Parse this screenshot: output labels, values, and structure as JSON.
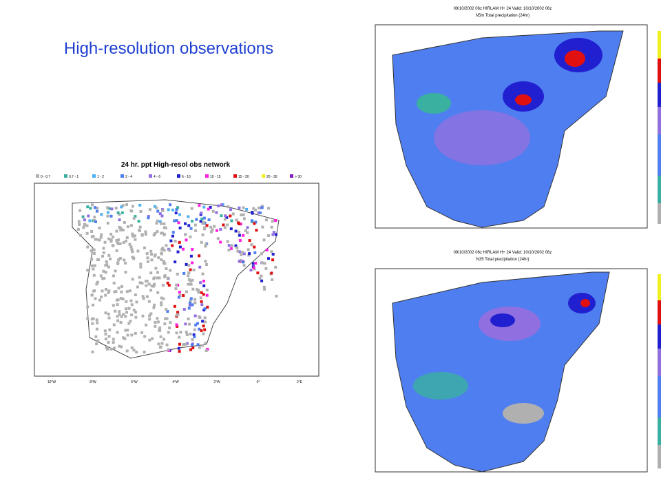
{
  "slide_title": "High-resolution observations",
  "left_map": {
    "title": "24 hr. ppt High-resol obs network",
    "legend": [
      "0 - 0.7",
      "0.7 - 1",
      "1 - 2",
      "2 - 4",
      "4 - 6",
      "6 - 10",
      "10 - 15",
      "15 - 20",
      "20 - 30",
      "> 30"
    ],
    "lon_labels": [
      "10°W",
      "8°W",
      "6°W",
      "4°W",
      "2°W",
      "0°",
      "2°E"
    ]
  },
  "right_maps": [
    {
      "header": "09/10/2002 06z  HIRLAM  H+ 24  Valid: 10/10/2002 06z",
      "subheader": "N5m   Total precipitation (24hr)"
    },
    {
      "header": "09/10/2002 06z  HIRLAM  H+ 24  Valid: 10/10/2002 06z",
      "subheader": "N35   Total precipitation (24hr)"
    }
  ]
}
